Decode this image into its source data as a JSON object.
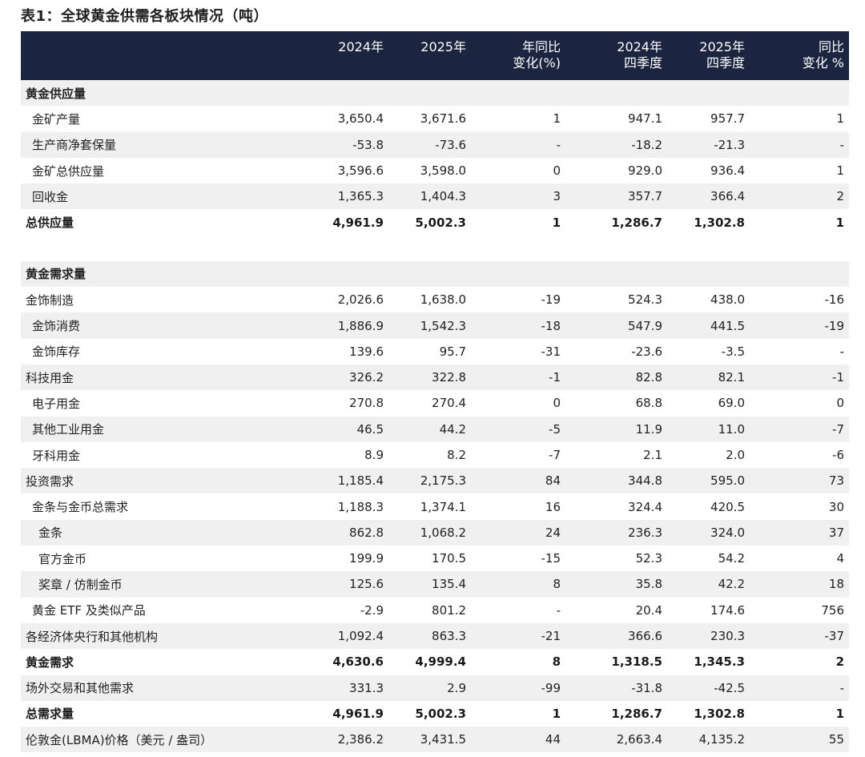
{
  "title": "表1：全球黄金供需各板块情况（吨）",
  "header": {
    "col1": [
      "2024年"
    ],
    "col2": [
      "2025年"
    ],
    "col3": [
      "年同比",
      "变化(%)"
    ],
    "col4": [
      "2024年",
      "四季度"
    ],
    "col5": [
      "2025年",
      "四季度"
    ],
    "col6": [
      "同比",
      "变化 %"
    ]
  },
  "rows": [
    {
      "type": "section",
      "label": "黄金供应量"
    },
    {
      "type": "row",
      "indent": 1,
      "label": "金矿产量",
      "v": [
        "3,650.4",
        "3,671.6",
        "1",
        "947.1",
        "957.7",
        "1"
      ]
    },
    {
      "type": "row",
      "indent": 1,
      "label": "生产商净套保量",
      "v": [
        "-53.8",
        "-73.6",
        "-",
        "-18.2",
        "-21.3",
        "-"
      ]
    },
    {
      "type": "row",
      "indent": 1,
      "label": "金矿总供应量",
      "v": [
        "3,596.6",
        "3,598.0",
        "0",
        "929.0",
        "936.4",
        "1"
      ]
    },
    {
      "type": "row",
      "indent": 1,
      "label": "回收金",
      "v": [
        "1,365.3",
        "1,404.3",
        "3",
        "357.7",
        "366.4",
        "2"
      ]
    },
    {
      "type": "bold",
      "indent": 0,
      "label": "总供应量",
      "v": [
        "4,961.9",
        "5,002.3",
        "1",
        "1,286.7",
        "1,302.8",
        "1"
      ]
    },
    {
      "type": "spacer"
    },
    {
      "type": "section",
      "label": "黄金需求量"
    },
    {
      "type": "row",
      "indent": 0,
      "label": "金饰制造",
      "v": [
        "2,026.6",
        "1,638.0",
        "-19",
        "524.3",
        "438.0",
        "-16"
      ]
    },
    {
      "type": "row",
      "indent": 1,
      "label": "金饰消费",
      "v": [
        "1,886.9",
        "1,542.3",
        "-18",
        "547.9",
        "441.5",
        "-19"
      ]
    },
    {
      "type": "row",
      "indent": 1,
      "label": "金饰库存",
      "v": [
        "139.6",
        "95.7",
        "-31",
        "-23.6",
        "-3.5",
        "-"
      ]
    },
    {
      "type": "row",
      "indent": 0,
      "label": "科技用金",
      "v": [
        "326.2",
        "322.8",
        "-1",
        "82.8",
        "82.1",
        "-1"
      ]
    },
    {
      "type": "row",
      "indent": 1,
      "label": "电子用金",
      "v": [
        "270.8",
        "270.4",
        "0",
        "68.8",
        "69.0",
        "0"
      ]
    },
    {
      "type": "row",
      "indent": 1,
      "label": "其他工业用金",
      "v": [
        "46.5",
        "44.2",
        "-5",
        "11.9",
        "11.0",
        "-7"
      ]
    },
    {
      "type": "row",
      "indent": 1,
      "label": "牙科用金",
      "v": [
        "8.9",
        "8.2",
        "-7",
        "2.1",
        "2.0",
        "-6"
      ]
    },
    {
      "type": "row",
      "indent": 0,
      "label": "投资需求",
      "v": [
        "1,185.4",
        "2,175.3",
        "84",
        "344.8",
        "595.0",
        "73"
      ]
    },
    {
      "type": "row",
      "indent": 1,
      "label": "金条与金币总需求",
      "v": [
        "1,188.3",
        "1,374.1",
        "16",
        "324.4",
        "420.5",
        "30"
      ]
    },
    {
      "type": "row",
      "indent": 2,
      "label": "金条",
      "v": [
        "862.8",
        "1,068.2",
        "24",
        "236.3",
        "324.0",
        "37"
      ]
    },
    {
      "type": "row",
      "indent": 2,
      "label": "官方金币",
      "v": [
        "199.9",
        "170.5",
        "-15",
        "52.3",
        "54.2",
        "4"
      ]
    },
    {
      "type": "row",
      "indent": 2,
      "label": "奖章 / 仿制金币",
      "v": [
        "125.6",
        "135.4",
        "8",
        "35.8",
        "42.2",
        "18"
      ]
    },
    {
      "type": "row",
      "indent": 1,
      "label": "黄金 ETF 及类似产品",
      "v": [
        "-2.9",
        "801.2",
        "-",
        "20.4",
        "174.6",
        "756"
      ]
    },
    {
      "type": "row",
      "indent": 0,
      "label": "各经济体央行和其他机构",
      "v": [
        "1,092.4",
        "863.3",
        "-21",
        "366.6",
        "230.3",
        "-37"
      ]
    },
    {
      "type": "bold",
      "indent": 0,
      "label": "黄金需求",
      "v": [
        "4,630.6",
        "4,999.4",
        "8",
        "1,318.5",
        "1,345.3",
        "2"
      ]
    },
    {
      "type": "row",
      "indent": 0,
      "label": "场外交易和其他需求",
      "v": [
        "331.3",
        "2.9",
        "-99",
        "-31.8",
        "-42.5",
        "-"
      ]
    },
    {
      "type": "bold",
      "indent": 0,
      "label": "总需求量",
      "v": [
        "4,961.9",
        "5,002.3",
        "1",
        "1,286.7",
        "1,302.8",
        "1"
      ]
    },
    {
      "type": "row",
      "indent": 0,
      "label": "伦敦金(LBMA)价格（美元 / 盎司）",
      "v": [
        "2,386.2",
        "3,431.5",
        "44",
        "2,663.4",
        "4,135.2",
        "55"
      ]
    }
  ]
}
